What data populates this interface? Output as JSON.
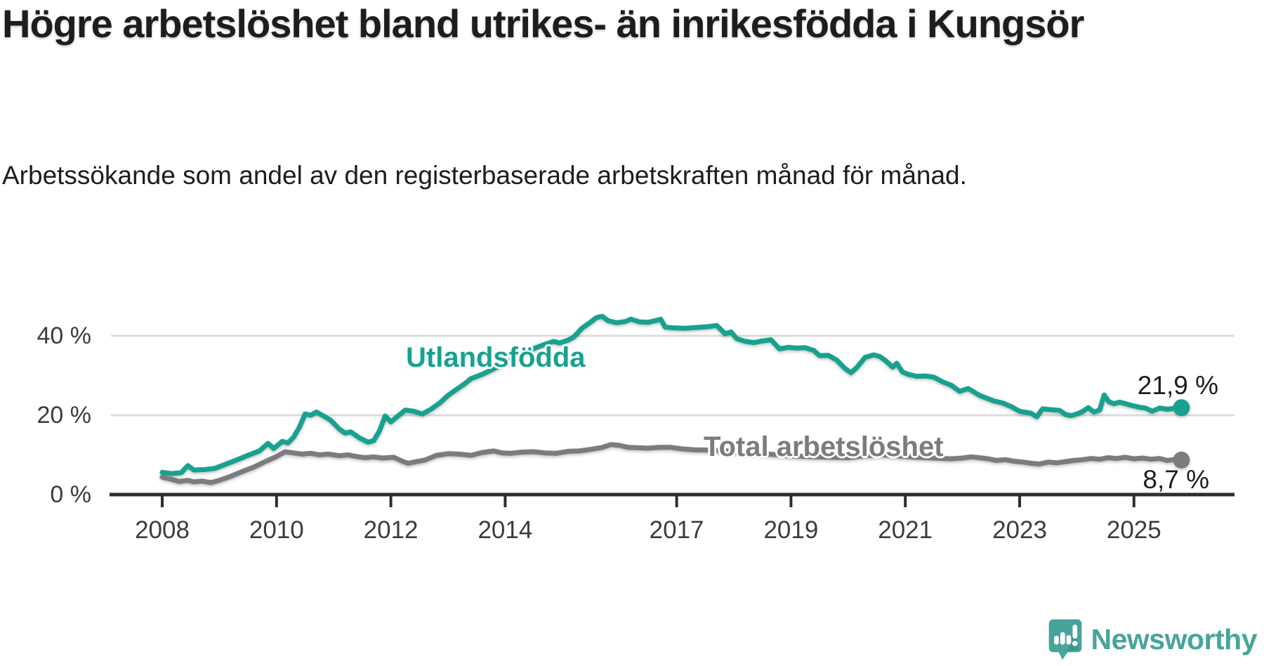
{
  "header": {
    "title": "Högre arbetslöshet bland utrikes- än inrikesfödda i Kungsör",
    "subtitle": "Arbetssökande som andel av den registerbaserade arbetskraften månad för månad."
  },
  "chart_data": {
    "type": "line",
    "title": "Högre arbetslöshet bland utrikes- än inrikesfödda i Kungsör",
    "xlabel": "",
    "ylabel": "",
    "x_unit": "year (monthly data)",
    "y_unit": "%",
    "x_ticks": [
      2008,
      2010,
      2012,
      2014,
      2017,
      2019,
      2021,
      2023,
      2025
    ],
    "y_ticks": [
      {
        "value": 0,
        "label": "0 %"
      },
      {
        "value": 20,
        "label": "20 %"
      },
      {
        "value": 40,
        "label": "40 %"
      }
    ],
    "x_range": [
      2007.9,
      2026.8
    ],
    "y_range": [
      0,
      47
    ],
    "grid": "horizontal",
    "legend_position": "inline-labels",
    "series": [
      {
        "name": "Utlandsfödda",
        "color": "#17a28f",
        "end_label": "21,9 %",
        "end_value": 21.9,
        "points": [
          [
            2008.0,
            5.6
          ],
          [
            2008.17,
            5.3
          ],
          [
            2008.33,
            5.5
          ],
          [
            2008.45,
            7.3
          ],
          [
            2008.55,
            6.2
          ],
          [
            2008.75,
            6.3
          ],
          [
            2008.92,
            6.6
          ],
          [
            2009.1,
            7.6
          ],
          [
            2009.3,
            8.7
          ],
          [
            2009.5,
            9.9
          ],
          [
            2009.7,
            11.0
          ],
          [
            2009.85,
            12.9
          ],
          [
            2009.95,
            11.6
          ],
          [
            2010.1,
            13.4
          ],
          [
            2010.2,
            13.0
          ],
          [
            2010.3,
            14.5
          ],
          [
            2010.4,
            17.0
          ],
          [
            2010.5,
            20.3
          ],
          [
            2010.6,
            20.0
          ],
          [
            2010.7,
            20.8
          ],
          [
            2010.8,
            20.0
          ],
          [
            2010.95,
            18.7
          ],
          [
            2011.1,
            16.5
          ],
          [
            2011.2,
            15.5
          ],
          [
            2011.3,
            15.8
          ],
          [
            2011.45,
            14.3
          ],
          [
            2011.6,
            13.2
          ],
          [
            2011.7,
            13.6
          ],
          [
            2011.8,
            16.0
          ],
          [
            2011.9,
            19.8
          ],
          [
            2012.0,
            18.3
          ],
          [
            2012.1,
            19.5
          ],
          [
            2012.25,
            21.3
          ],
          [
            2012.4,
            21.0
          ],
          [
            2012.55,
            20.3
          ],
          [
            2012.7,
            21.5
          ],
          [
            2012.85,
            23.0
          ],
          [
            2013.0,
            25.0
          ],
          [
            2013.15,
            26.5
          ],
          [
            2013.3,
            28.0
          ],
          [
            2013.4,
            29.2
          ],
          [
            2013.6,
            30.3
          ],
          [
            2013.8,
            31.7
          ],
          [
            2014.0,
            33.2
          ],
          [
            2014.25,
            35.0
          ],
          [
            2014.5,
            36.8
          ],
          [
            2014.7,
            37.9
          ],
          [
            2014.85,
            38.6
          ],
          [
            2014.95,
            38.2
          ],
          [
            2015.1,
            38.9
          ],
          [
            2015.2,
            39.7
          ],
          [
            2015.35,
            42.0
          ],
          [
            2015.5,
            43.5
          ],
          [
            2015.6,
            44.6
          ],
          [
            2015.7,
            44.9
          ],
          [
            2015.8,
            43.8
          ],
          [
            2015.95,
            43.3
          ],
          [
            2016.1,
            43.6
          ],
          [
            2016.2,
            44.2
          ],
          [
            2016.35,
            43.5
          ],
          [
            2016.5,
            43.4
          ],
          [
            2016.65,
            43.9
          ],
          [
            2016.72,
            44.2
          ],
          [
            2016.8,
            42.2
          ],
          [
            2016.95,
            42.0
          ],
          [
            2017.15,
            41.9
          ],
          [
            2017.35,
            42.1
          ],
          [
            2017.55,
            42.3
          ],
          [
            2017.7,
            42.6
          ],
          [
            2017.85,
            40.5
          ],
          [
            2017.95,
            41.0
          ],
          [
            2018.05,
            39.3
          ],
          [
            2018.2,
            38.6
          ],
          [
            2018.35,
            38.3
          ],
          [
            2018.5,
            38.7
          ],
          [
            2018.65,
            39.0
          ],
          [
            2018.8,
            36.7
          ],
          [
            2018.95,
            37.1
          ],
          [
            2019.1,
            36.9
          ],
          [
            2019.25,
            37.0
          ],
          [
            2019.4,
            36.3
          ],
          [
            2019.5,
            35.0
          ],
          [
            2019.65,
            35.1
          ],
          [
            2019.8,
            33.9
          ],
          [
            2019.95,
            31.7
          ],
          [
            2020.05,
            30.7
          ],
          [
            2020.15,
            32.0
          ],
          [
            2020.3,
            34.6
          ],
          [
            2020.45,
            35.2
          ],
          [
            2020.55,
            34.8
          ],
          [
            2020.65,
            33.8
          ],
          [
            2020.78,
            32.1
          ],
          [
            2020.85,
            33.1
          ],
          [
            2020.95,
            30.9
          ],
          [
            2021.05,
            30.3
          ],
          [
            2021.2,
            29.8
          ],
          [
            2021.35,
            29.9
          ],
          [
            2021.5,
            29.6
          ],
          [
            2021.65,
            28.4
          ],
          [
            2021.8,
            27.6
          ],
          [
            2021.95,
            26.0
          ],
          [
            2022.1,
            26.7
          ],
          [
            2022.3,
            25.0
          ],
          [
            2022.55,
            23.6
          ],
          [
            2022.7,
            23.1
          ],
          [
            2022.85,
            22.2
          ],
          [
            2023.0,
            21.0
          ],
          [
            2023.2,
            20.5
          ],
          [
            2023.3,
            19.6
          ],
          [
            2023.4,
            21.6
          ],
          [
            2023.55,
            21.4
          ],
          [
            2023.7,
            21.2
          ],
          [
            2023.8,
            20.2
          ],
          [
            2023.9,
            19.9
          ],
          [
            2024.0,
            20.3
          ],
          [
            2024.1,
            20.9
          ],
          [
            2024.2,
            21.9
          ],
          [
            2024.3,
            20.8
          ],
          [
            2024.4,
            21.3
          ],
          [
            2024.48,
            25.1
          ],
          [
            2024.56,
            23.4
          ],
          [
            2024.65,
            22.9
          ],
          [
            2024.75,
            23.3
          ],
          [
            2024.85,
            22.9
          ],
          [
            2024.95,
            22.5
          ],
          [
            2025.1,
            22.0
          ],
          [
            2025.2,
            21.8
          ],
          [
            2025.32,
            21.0
          ],
          [
            2025.45,
            21.8
          ],
          [
            2025.58,
            21.5
          ],
          [
            2025.7,
            21.7
          ],
          [
            2025.83,
            21.9
          ]
        ]
      },
      {
        "name": "Total arbetslöshet",
        "color": "#7b7b80",
        "end_label": "8,7 %",
        "end_value": 8.7,
        "points": [
          [
            2008.0,
            4.4
          ],
          [
            2008.15,
            3.9
          ],
          [
            2008.3,
            3.3
          ],
          [
            2008.45,
            3.6
          ],
          [
            2008.55,
            3.2
          ],
          [
            2008.7,
            3.4
          ],
          [
            2008.85,
            3.0
          ],
          [
            2009.0,
            3.6
          ],
          [
            2009.2,
            4.6
          ],
          [
            2009.4,
            5.8
          ],
          [
            2009.6,
            6.9
          ],
          [
            2009.8,
            8.3
          ],
          [
            2010.0,
            9.6
          ],
          [
            2010.15,
            10.8
          ],
          [
            2010.3,
            10.5
          ],
          [
            2010.45,
            10.2
          ],
          [
            2010.6,
            10.4
          ],
          [
            2010.75,
            10.0
          ],
          [
            2010.9,
            10.2
          ],
          [
            2011.1,
            9.8
          ],
          [
            2011.25,
            10.0
          ],
          [
            2011.4,
            9.6
          ],
          [
            2011.55,
            9.3
          ],
          [
            2011.7,
            9.5
          ],
          [
            2011.85,
            9.2
          ],
          [
            2012.05,
            9.4
          ],
          [
            2012.2,
            8.4
          ],
          [
            2012.3,
            7.9
          ],
          [
            2012.45,
            8.3
          ],
          [
            2012.6,
            8.7
          ],
          [
            2012.8,
            9.9
          ],
          [
            2013.0,
            10.3
          ],
          [
            2013.2,
            10.2
          ],
          [
            2013.4,
            9.9
          ],
          [
            2013.6,
            10.6
          ],
          [
            2013.8,
            11.0
          ],
          [
            2013.95,
            10.5
          ],
          [
            2014.1,
            10.4
          ],
          [
            2014.3,
            10.7
          ],
          [
            2014.5,
            10.8
          ],
          [
            2014.7,
            10.5
          ],
          [
            2014.9,
            10.4
          ],
          [
            2015.1,
            10.9
          ],
          [
            2015.3,
            11.0
          ],
          [
            2015.5,
            11.4
          ],
          [
            2015.7,
            11.9
          ],
          [
            2015.85,
            12.6
          ],
          [
            2016.0,
            12.4
          ],
          [
            2016.15,
            11.9
          ],
          [
            2016.3,
            11.8
          ],
          [
            2016.5,
            11.7
          ],
          [
            2016.7,
            11.9
          ],
          [
            2016.9,
            11.9
          ],
          [
            2017.1,
            11.5
          ],
          [
            2017.3,
            11.3
          ],
          [
            2017.6,
            11.2
          ],
          [
            2017.9,
            11.0
          ],
          [
            2018.2,
            10.6
          ],
          [
            2018.5,
            10.3
          ],
          [
            2018.8,
            10.0
          ],
          [
            2019.1,
            9.7
          ],
          [
            2019.4,
            9.5
          ],
          [
            2019.7,
            9.4
          ],
          [
            2020.0,
            9.3
          ],
          [
            2020.3,
            9.8
          ],
          [
            2020.6,
            10.0
          ],
          [
            2020.9,
            9.7
          ],
          [
            2021.2,
            9.4
          ],
          [
            2021.5,
            9.2
          ],
          [
            2021.8,
            9.0
          ],
          [
            2022.0,
            9.2
          ],
          [
            2022.15,
            9.5
          ],
          [
            2022.3,
            9.3
          ],
          [
            2022.45,
            9.0
          ],
          [
            2022.6,
            8.6
          ],
          [
            2022.75,
            8.8
          ],
          [
            2022.9,
            8.4
          ],
          [
            2023.05,
            8.2
          ],
          [
            2023.2,
            7.9
          ],
          [
            2023.35,
            7.7
          ],
          [
            2023.5,
            8.2
          ],
          [
            2023.65,
            8.0
          ],
          [
            2023.8,
            8.3
          ],
          [
            2023.95,
            8.6
          ],
          [
            2024.1,
            8.8
          ],
          [
            2024.25,
            9.1
          ],
          [
            2024.4,
            8.9
          ],
          [
            2024.55,
            9.3
          ],
          [
            2024.7,
            9.1
          ],
          [
            2024.85,
            9.4
          ],
          [
            2025.0,
            9.0
          ],
          [
            2025.15,
            9.2
          ],
          [
            2025.3,
            8.9
          ],
          [
            2025.45,
            9.1
          ],
          [
            2025.58,
            8.6
          ],
          [
            2025.7,
            8.8
          ],
          [
            2025.83,
            8.7
          ]
        ]
      }
    ]
  },
  "footer": {
    "brand": "Newsworthy",
    "brand_color": "#47a49b",
    "icon": "bar-chart-speech-bubble-icon"
  },
  "colors": {
    "accent_teal": "#17a28f",
    "series_gray": "#7b7b80",
    "gridline": "#dcdcdc",
    "axis": "#2e2e2e",
    "text": "#1d1d1b"
  }
}
